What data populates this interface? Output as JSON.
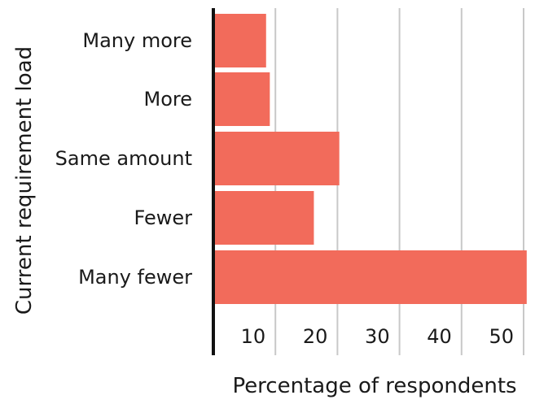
{
  "chart_data": {
    "type": "bar",
    "orientation": "horizontal",
    "categories": [
      "Many more",
      "More",
      "Same amount",
      "Fewer",
      "Many fewer"
    ],
    "values": [
      8.5,
      9.1,
      20.3,
      16.2,
      50.5
    ],
    "xlabel": "Percentage of respondents",
    "ylabel": "Current requirement load",
    "xticks": [
      "10",
      "20",
      "30",
      "40",
      "50"
    ],
    "xlim": [
      0,
      50
    ],
    "grid": true,
    "bar_color": "#f26b5b",
    "grid_color": "#c8c8c8",
    "axis_color": "#111111"
  }
}
